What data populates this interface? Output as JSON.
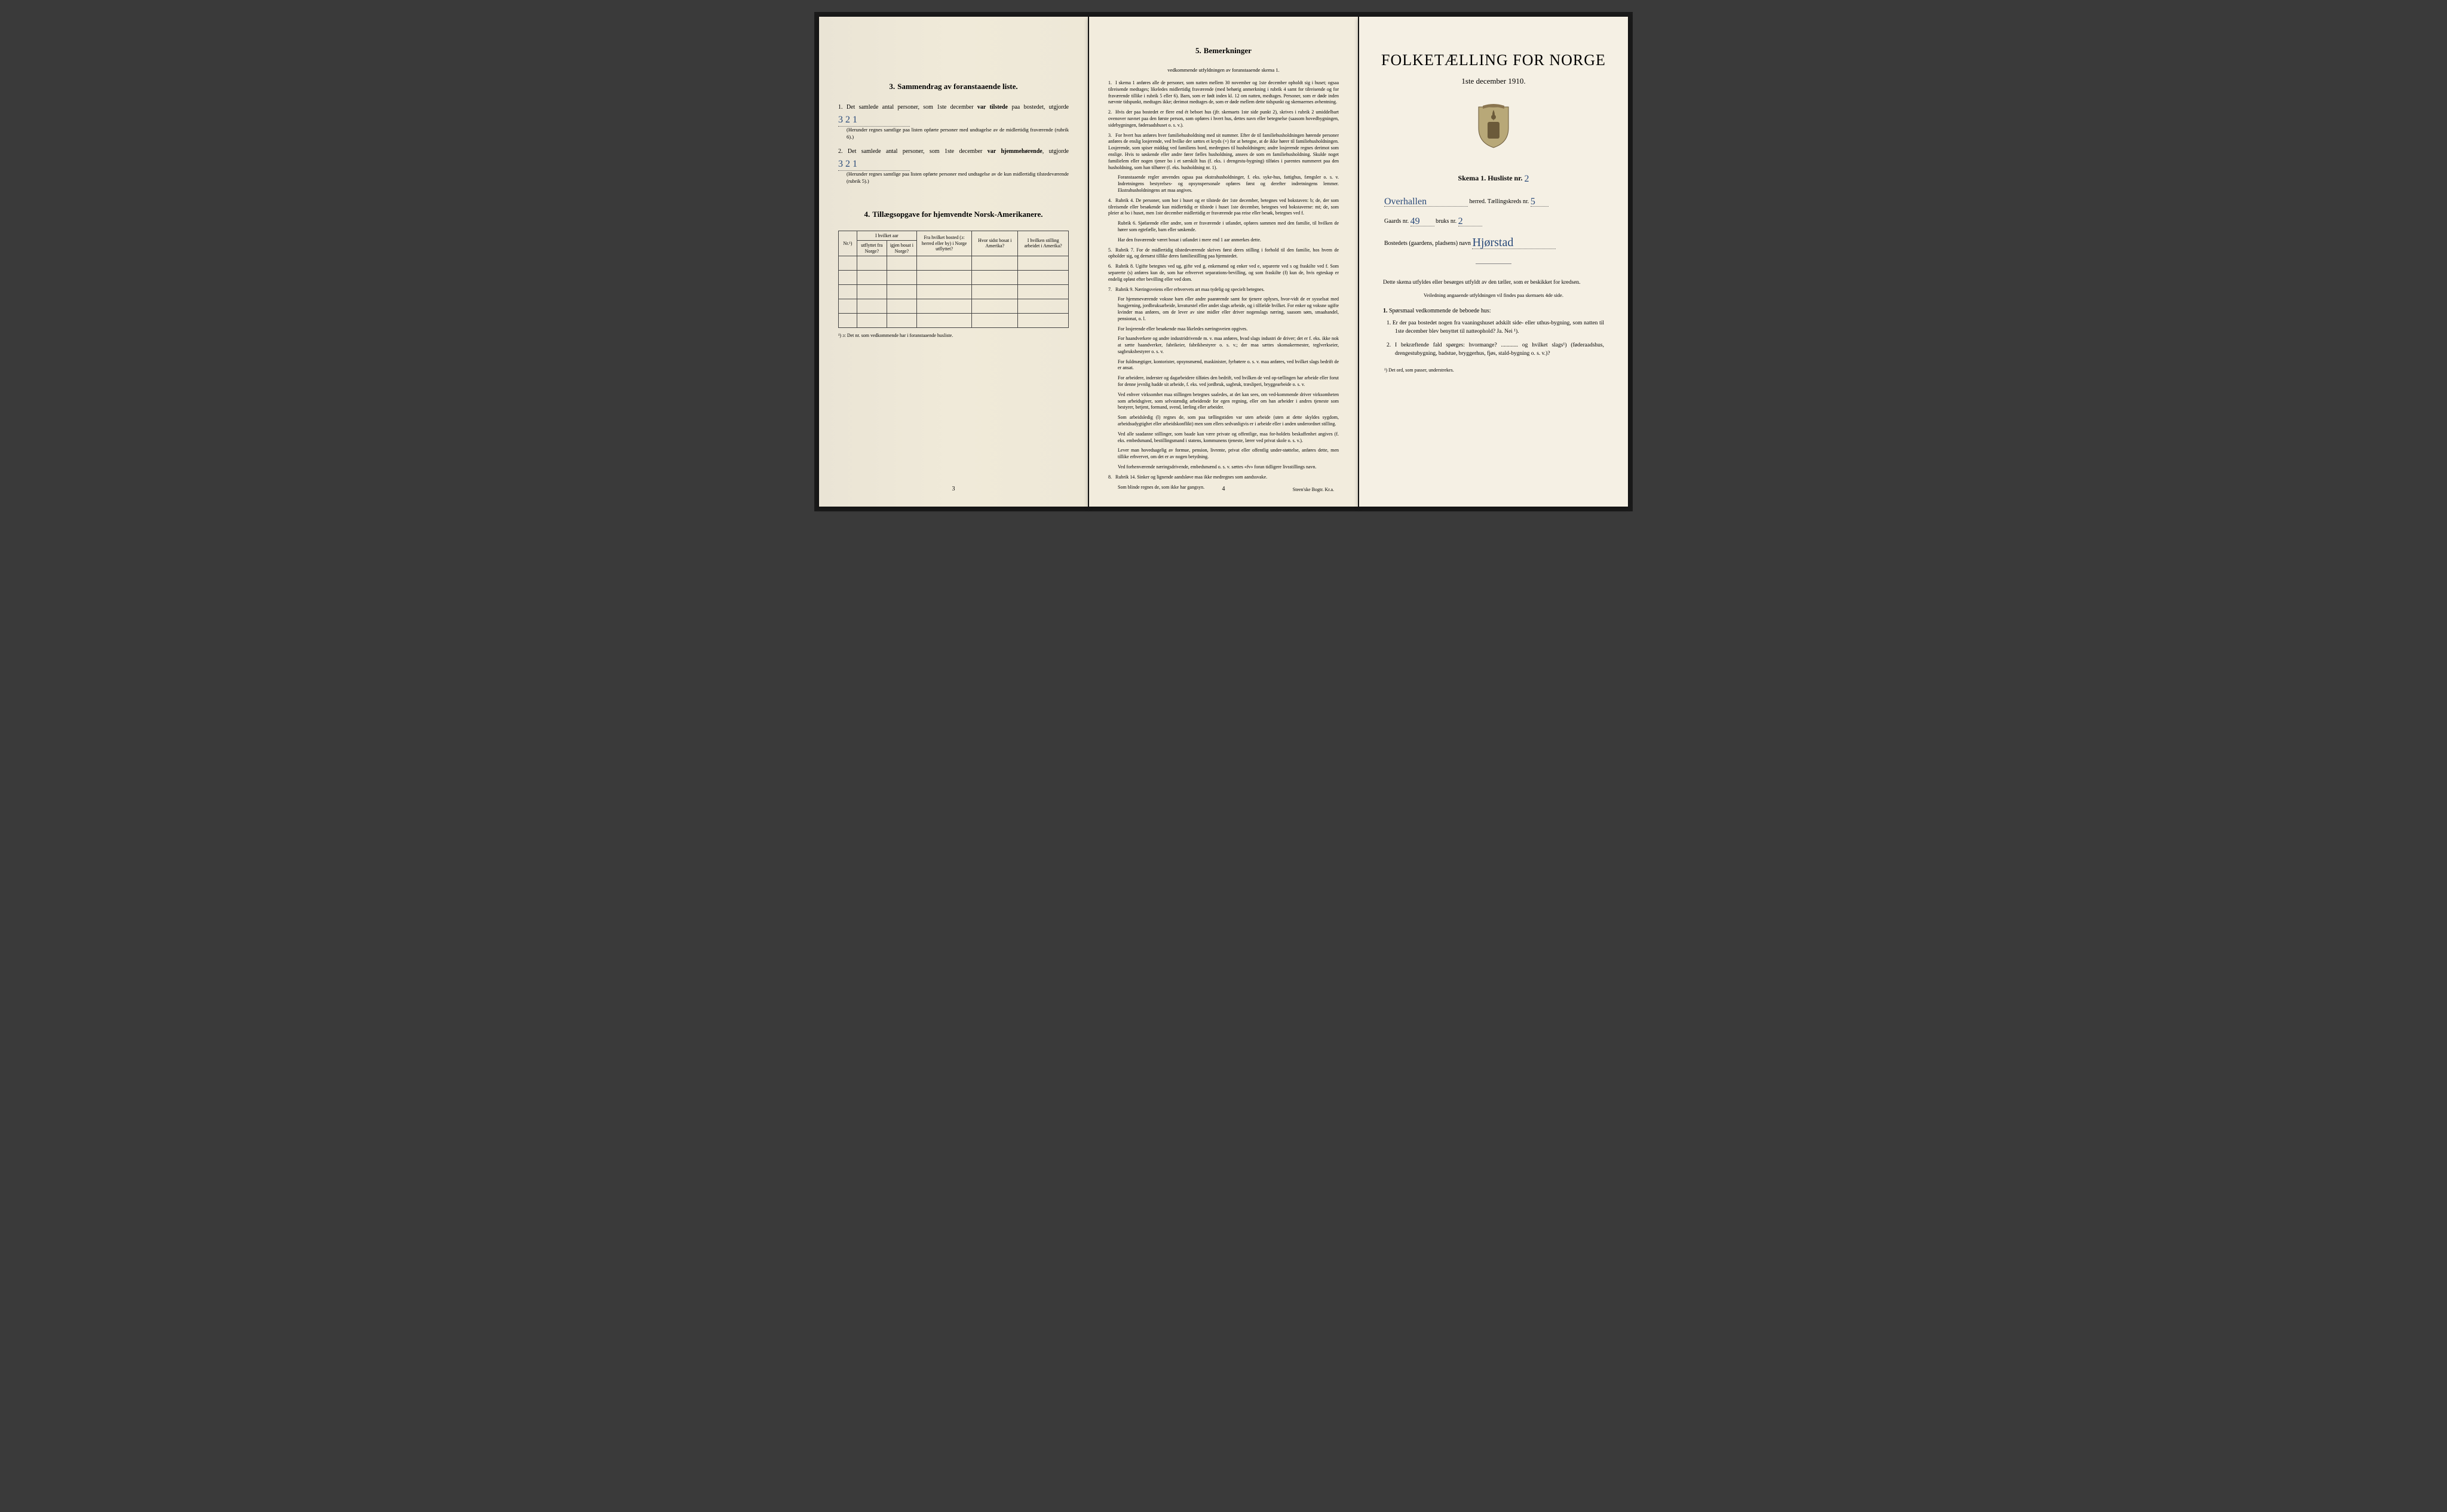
{
  "colors": {
    "paper": "#f4efe2",
    "ink": "#222222",
    "handwriting": "#2a4a7a",
    "border": "#444444"
  },
  "typography": {
    "body_size_pt": 10,
    "small_size_pt": 8.5,
    "title_size_pt": 26,
    "font_family": "Georgia / Times New Roman (serif)"
  },
  "page1": {
    "section3": {
      "num": "3.",
      "title": "Sammendrag av foranstaaende liste.",
      "item1_pre": "1.  Det samlede antal personer, som 1ste december ",
      "item1_bold": "var tilstede",
      "item1_post": " paa bostedet, utgjorde",
      "item1_value": "3   2   1",
      "item1_note": "(Herunder regnes samtlige paa listen opførte personer med undtagelse av de midlertidig fraværende (rubrik 6).)",
      "item2_pre": "2.  Det samlede antal personer, som 1ste december ",
      "item2_bold": "var hjemmehørende",
      "item2_post": ", utgjorde",
      "item2_value": "3   2   1",
      "item2_note": "(Herunder regnes samtlige paa listen opførte personer med undtagelse av de kun midlertidig tilstedeværende (rubrik 5).)"
    },
    "section4": {
      "num": "4.",
      "title": "Tillægsopgave for hjemvendte Norsk-Amerikanere.",
      "cols": [
        "Nr.¹)",
        "I hvilket aar utflyttet fra Norge?",
        "igjen bosat i Norge?",
        "Fra hvilket bosted (ɔ: herred eller by) i Norge utflyttet?",
        "Hvor sidst bosat i Amerika?",
        "I hvilken stilling arbeidet i Amerika?"
      ],
      "rows": 5,
      "footnote": "¹) ɔ: Det nr. som vedkommende har i foranstaaende husliste."
    },
    "pagenum": "3"
  },
  "page2": {
    "section5": {
      "num": "5.",
      "title": "Bemerkninger",
      "subtitle": "vedkommende utfyldningen av foranstaaende skema 1."
    },
    "remarks": [
      {
        "n": "1.",
        "text": "I skema 1 anføres alle de personer, som natten mellem 30 november og 1ste december opholdt sig i huset; ogsaa tilreisende medtages; likeledes midlertidig fraværende (med behørig anmerkning i rubrik 4 samt for tilreisende og for fraværende tillike i rubrik 5 eller 6). Barn, som er født inden kl. 12 om natten, medtages. Personer, som er døde inden nævnte tidspunkt, medtages ikke; derimot medtages de, som er døde mellem dette tidspunkt og skemaernes avhentning."
      },
      {
        "n": "2.",
        "text": "Hvis der paa bostedet er flere end ét beboet hus (jfr. skemaets 1ste side punkt 2), skrives i rubrik 2 umiddelbart ovenover navnet paa den første person, som opføres i hvert hus, dettes navn eller betegnelse (saasom hovedbygningen, sidebygningen, føderaadshuset o. s. v.)."
      },
      {
        "n": "3.",
        "text": "For hvert hus anføres hver familiehusholdning med sit nummer. Efter de til familiehusholdningen hørende personer anføres de enslig losjerende, ved hvilke der sættes et kryds (×) for at betegne, at de ikke hører til familiehusholdningen. Losjerende, som spiser middag ved familiens bord, medregnes til husholdningen; andre losjerende regnes derimot som enslige. Hvis to søskende eller andre fører fælles husholdning, ansees de som en familiehusholdning. Skulde noget familielem eller nogen tjener bo i et særskilt hus (f. eks. i drengestu-bygning) tilføies i parentes nummeret paa den husholdning, som han tilhører (f. eks. husholdning nr. 1)."
      },
      {
        "n": "",
        "text": "Foranstaaende regler anvendes ogsaa paa ekstrahusholdninger, f. eks. syke-hus, fattighus, fængsler o. s. v. Indretningens bestyrelses- og opsynspersonale opføres først og derefter indretningens lemmer. Ekstrahusholdningens art maa angives.",
        "sub": true
      },
      {
        "n": "4.",
        "text": "Rubrik 4. De personer, som bor i huset og er tilstede der 1ste december, betegnes ved bokstaven: b; de, der som tilreisende eller besøkende kun midlertidig er tilstede i huset 1ste december, betegnes ved bokstaverne: mt; de, som pleier at bo i huset, men 1ste december midlertidig er fraværende paa reise eller besøk, betegnes ved f."
      },
      {
        "n": "",
        "text": "Rubrik 6. Sjøfarende eller andre, som er fraværende i utlandet, opføres sammen med den familie, til hvilken de hører som egtefælle, barn eller søskende.",
        "sub": true
      },
      {
        "n": "",
        "text": "Har den fraværende været bosat i utlandet i mere end 1 aar anmerkes dette.",
        "sub": true
      },
      {
        "n": "5.",
        "text": "Rubrik 7. For de midlertidig tilstedeværende skrives først deres stilling i forhold til den familie, hos hvem de opholder sig, og dernæst tillike deres familiestilling paa hjemstedet."
      },
      {
        "n": "6.",
        "text": "Rubrik 8. Ugifte betegnes ved ug, gifte ved g, enkemænd og enker ved e, separerte ved s og fraskilte ved f. Som separerte (s) anføres kun de, som har erhvervet separations-bevilling, og som fraskilte (f) kun de, hvis egteskap er endelig opløst efter bevilling eller ved dom."
      },
      {
        "n": "7.",
        "text": "Rubrik 9. Næringsveiens eller erhvervets art maa tydelig og specielt betegnes."
      },
      {
        "n": "",
        "text": "For hjemmeværende voksne barn eller andre paarørende samt for tjenere oplyses, hvor-vidt de er sysselsat med husgjerning, jordbruksarbeide, kreaturstel eller andet slags arbeide, og i tilfælde hvilket. For enker og voksne ugifte kvinder maa anføres, om de lever av sine midler eller driver nogenslags næring, saasom søm, smaahandel, pensionat, o. l.",
        "sub": true
      },
      {
        "n": "",
        "text": "For losjerende eller besøkende maa likeledes næringsveien opgives.",
        "sub": true
      },
      {
        "n": "",
        "text": "For haandverkere og andre industridrivende m. v. maa anføres, hvad slags industri de driver; det er f. eks. ikke nok at sætte haandverker, fabrikeier, fabrikbestyrer o. s. v.; der maa sættes skomakermester, teglverkseier, sagbruksbestyrer o. s. v.",
        "sub": true
      },
      {
        "n": "",
        "text": "For fuldmægtiger, kontorister, opsynsmænd, maskinister, fyrbøtere o. s. v. maa anføres, ved hvilket slags bedrift de er ansat.",
        "sub": true
      },
      {
        "n": "",
        "text": "For arbeidere, inderster og dagarbeidere tilføies den bedrift, ved hvilken de ved op-tællingen har arbeide eller forut for denne jevnlig hadde sit arbeide, f. eks. ved jordbruk, sagbruk, træsliperi, bryggearbeide o. s. v.",
        "sub": true
      },
      {
        "n": "",
        "text": "Ved enhver virksomhet maa stillingen betegnes saaledes, at det kan sees, om ved-kommende driver virksomheten som arbeidsgiver, som selvstændig arbeidende for egen regning, eller om han arbeider i andres tjeneste som bestyrer, betjent, formand, svend, lærling eller arbeider.",
        "sub": true
      },
      {
        "n": "",
        "text": "Som arbeidsledig (l) regnes de, som paa tællingstiden var uten arbeide (uten at dette skyldes sygdom, arbeidsudygtighet eller arbeidskonflikt) men som ellers sedvanligvis er i arbeide eller i anden underordnet stilling.",
        "sub": true
      },
      {
        "n": "",
        "text": "Ved alle saadanne stillinger, som baade kan være private og offentlige, maa for-holdets beskaffenhet angives (f. eks. embedsmand, bestillingsmand i statens, kommunens tjeneste, lærer ved privat skole o. s. v.).",
        "sub": true
      },
      {
        "n": "",
        "text": "Lever man hovedsagelig av formue, pension, livrente, privat eller offentlig under-støttelse, anføres dette, men tillike erhvervet, om det er av nogen betydning.",
        "sub": true
      },
      {
        "n": "",
        "text": "Ved forhenværende næringsdrivende, embedsmænd o. s. v. sættes «fv» foran tidligere livsstillings navn.",
        "sub": true
      },
      {
        "n": "8.",
        "text": "Rubrik 14. Sinker og lignende aandsløve maa ikke medregnes som aandssvake."
      },
      {
        "n": "",
        "text": "Som blinde regnes de, som ikke har gangsyn.",
        "sub": true
      }
    ],
    "pagenum": "4",
    "printer": "Steen'ske Bogtr. Kr.a."
  },
  "page3": {
    "title": "FOLKETÆLLING FOR NORGE",
    "date": "1ste december 1910.",
    "skema_label": "Skema 1.   Husliste nr.",
    "husliste_nr": "2",
    "herred_value": "Overhallen",
    "herred_label": "herred.  Tællingskreds nr.",
    "kreds_nr": "5",
    "gaards_label": "Gaards nr.",
    "gaards_nr": "49",
    "bruks_label": "bruks nr.",
    "bruks_nr": "2",
    "bosted_label": "Bostedets (gaardens, pladsens) navn",
    "bosted_value": "Hjørstad",
    "instr1": "Dette skema utfyldes eller besørges utfyldt av den tæller, som er beskikket for kredsen.",
    "instr2": "Veiledning angaaende utfyldningen vil findes paa skemaets 4de side.",
    "q_header_num": "1.",
    "q_header": "Spørsmaal vedkommende de beboede hus:",
    "q1": "1.  Er der paa bostedet nogen fra vaaningshuset adskilt side- eller uthus-bygning, som natten til 1ste december blev benyttet til natteophold?   Ja.   Nei ¹).",
    "q2": "2.  I bekræftende fald spørges: hvormange? ............ og hvilket slags¹) (føderaadshus, drengestubygning, badstue, bryggerhus, fjøs, stald-bygning o. s. v.)?",
    "footnote": "¹) Det ord, som passer, understrekes."
  }
}
